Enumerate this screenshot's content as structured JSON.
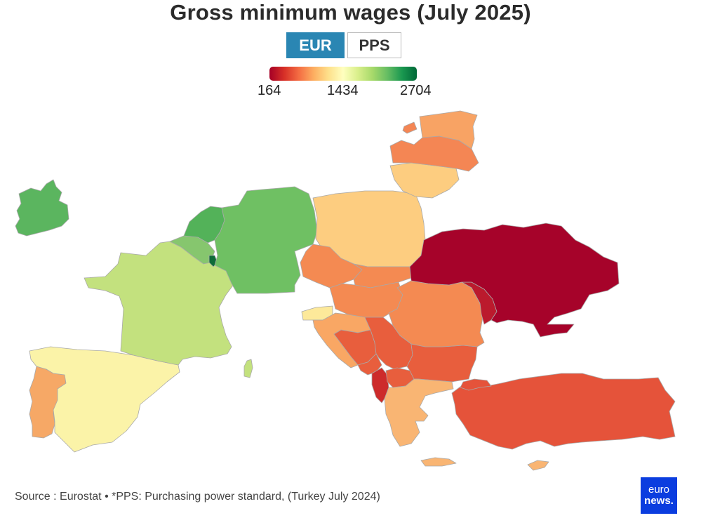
{
  "title": "Gross minimum wages (July 2025)",
  "toggle": {
    "options": [
      {
        "label": "EUR",
        "selected": true
      },
      {
        "label": "PPS",
        "selected": false
      }
    ]
  },
  "legend": {
    "min_label": "164",
    "mid_label": "1434",
    "max_label": "2704",
    "gradient_colors": [
      "#a50026",
      "#d73027",
      "#f46d43",
      "#fdae61",
      "#fee08b",
      "#ffffbf",
      "#d9ef8b",
      "#a6d96a",
      "#66bd63",
      "#1a9850",
      "#006837"
    ]
  },
  "map": {
    "countries": [
      {
        "id": "ireland",
        "color": "#5bb55f"
      },
      {
        "id": "portugal",
        "color": "#f6a866"
      },
      {
        "id": "spain",
        "color": "#fbf3a8"
      },
      {
        "id": "france",
        "color": "#c3e17e"
      },
      {
        "id": "corsica",
        "color": "#c3e17e"
      },
      {
        "id": "belgium",
        "color": "#86c66e"
      },
      {
        "id": "netherlands",
        "color": "#53b259"
      },
      {
        "id": "luxembourg",
        "color": "#0e6b38"
      },
      {
        "id": "germany",
        "color": "#6fc063"
      },
      {
        "id": "poland",
        "color": "#fdcd80"
      },
      {
        "id": "lithuania",
        "color": "#fdcd80"
      },
      {
        "id": "latvia",
        "color": "#f48654"
      },
      {
        "id": "estonia",
        "color": "#f8a364"
      },
      {
        "id": "czechia",
        "color": "#f48a52"
      },
      {
        "id": "slovakia",
        "color": "#f48a52"
      },
      {
        "id": "hungary",
        "color": "#f48a52"
      },
      {
        "id": "slovenia",
        "color": "#fde99a"
      },
      {
        "id": "croatia",
        "color": "#f9a764"
      },
      {
        "id": "romania",
        "color": "#f48a52"
      },
      {
        "id": "serbia",
        "color": "#e85e3d"
      },
      {
        "id": "bosnia",
        "color": "#e85e3d"
      },
      {
        "id": "montenegro",
        "color": "#e85e3d"
      },
      {
        "id": "north-macedonia",
        "color": "#e85e3d"
      },
      {
        "id": "bulgaria",
        "color": "#e85e3d"
      },
      {
        "id": "albania",
        "color": "#cd2b2b"
      },
      {
        "id": "moldova",
        "color": "#bb1a2d"
      },
      {
        "id": "ukraine",
        "color": "#a6032a"
      },
      {
        "id": "greece",
        "color": "#f9b573"
      },
      {
        "id": "crete",
        "color": "#f9b573"
      },
      {
        "id": "turkey",
        "color": "#e5533a"
      },
      {
        "id": "cyprus",
        "color": "#f9b573"
      }
    ]
  },
  "source": "Source : Eurostat • *PPS: Purchasing power standard, (Turkey July 2024)",
  "logo": {
    "line1": "euro",
    "line2": "news."
  }
}
